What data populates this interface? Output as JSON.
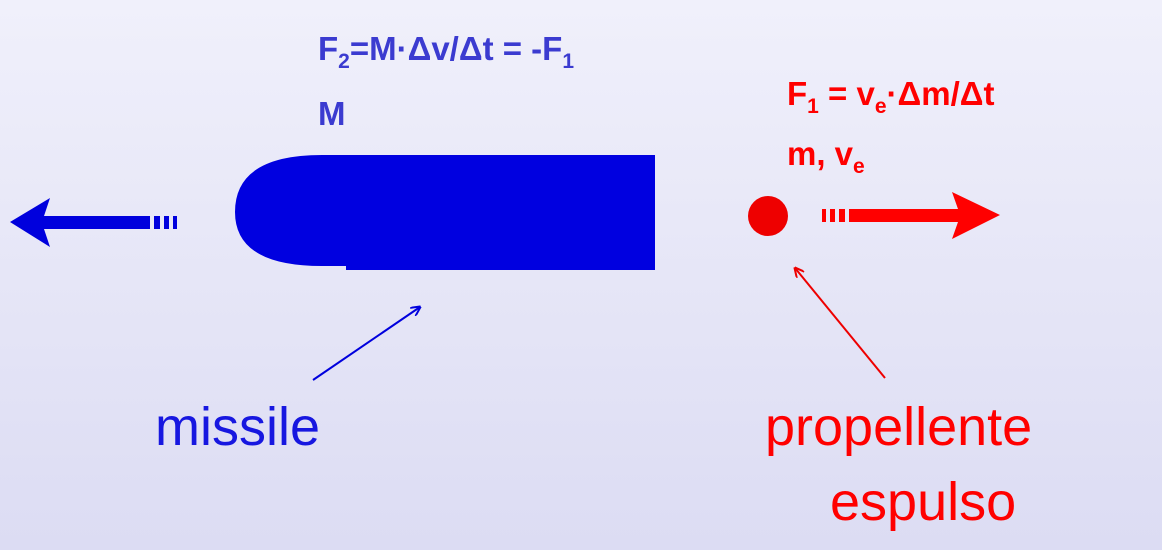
{
  "missile_formula": [
    "F",
    "2",
    "=M·Δv/Δt = -F",
    "1"
  ],
  "missile_mass": "M",
  "propellant_formula": [
    "F",
    "1",
    " = v",
    "e",
    "·Δm/Δt"
  ],
  "propellant_quantities": [
    "m, v",
    "e"
  ],
  "missile_label": "missile",
  "propellant_label": [
    "propellente",
    "espulso"
  ]
}
